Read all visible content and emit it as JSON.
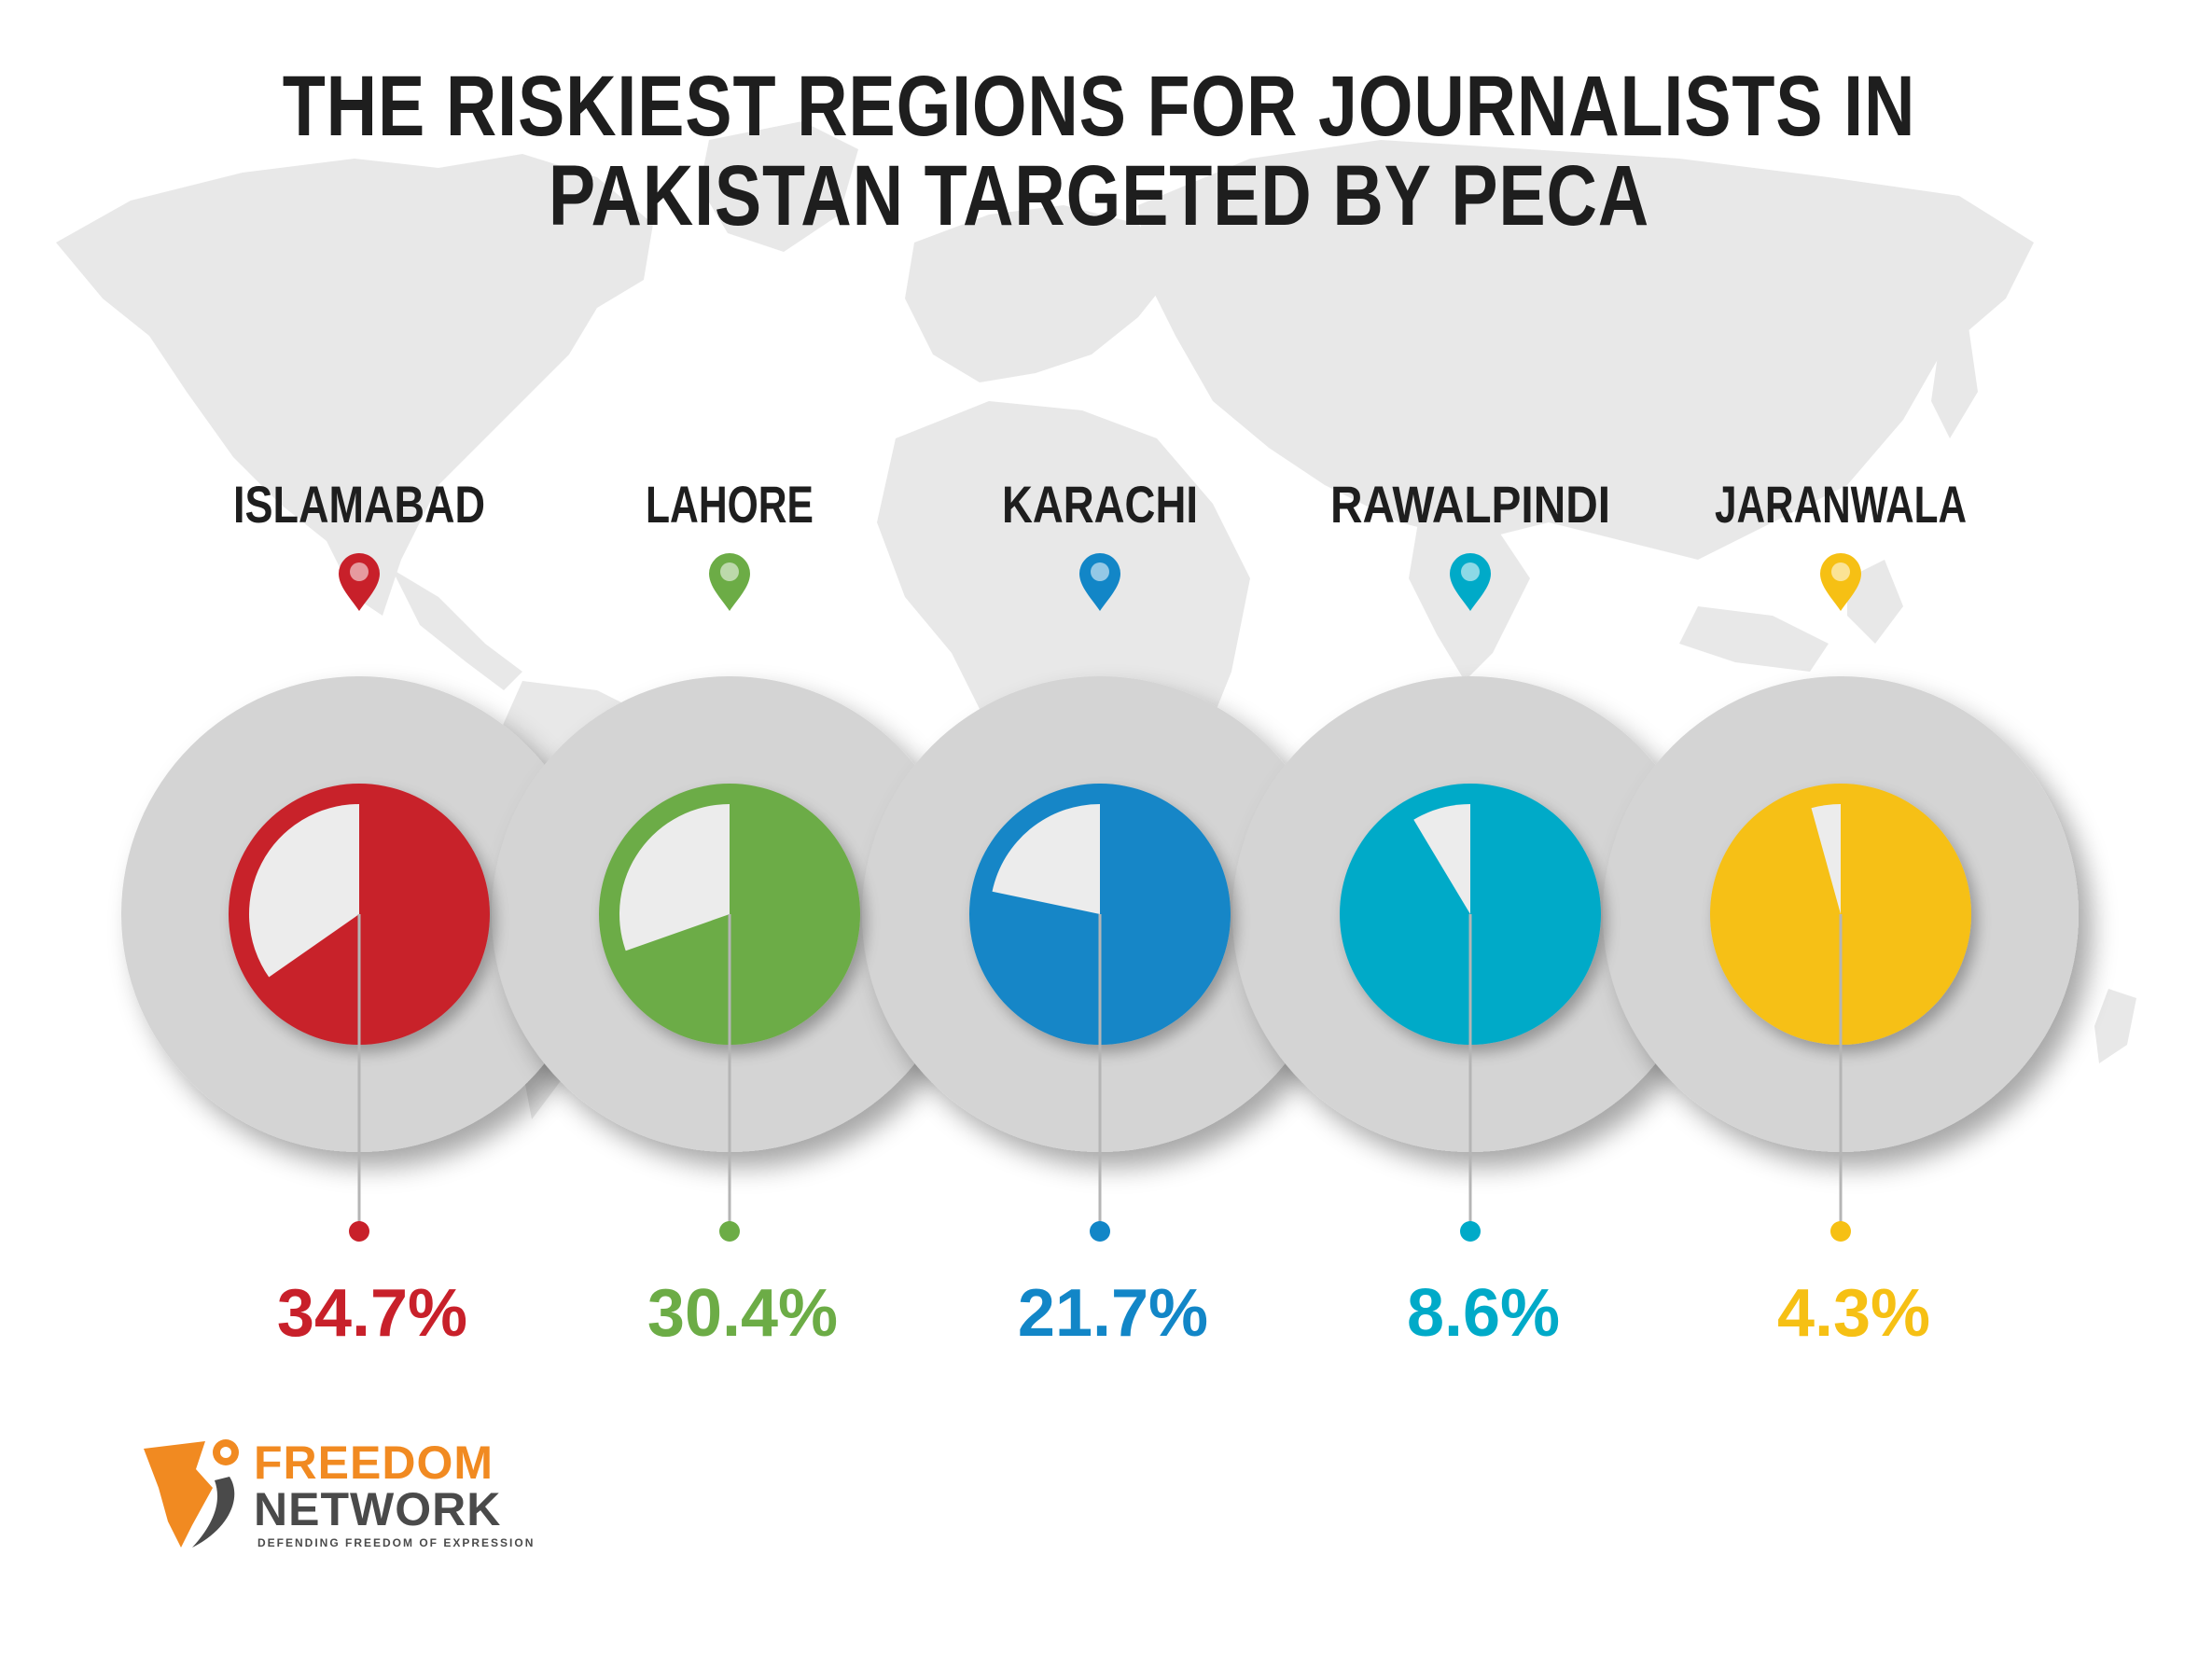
{
  "title": {
    "line1": "THE RISKIEST REGIONS FOR JOURNALISTS IN",
    "line2": "PAKISTAN TARGETED BY PECA"
  },
  "chart_data": {
    "type": "pie",
    "title": "THE RISKIEST REGIONS FOR JOURNALISTS IN PAKISTAN TARGETED BY PECA",
    "categories": [
      "ISLAMABAD",
      "LAHORE",
      "KARACHI",
      "RAWALPINDI",
      "JARANWALA"
    ],
    "values": [
      34.7,
      30.4,
      21.7,
      8.6,
      4.3
    ],
    "labels": [
      "34.7%",
      "30.4%",
      "21.7%",
      "8.6%",
      "4.3%"
    ],
    "unit": "%",
    "colors": [
      "#c8202a",
      "#6cac46",
      "#1286c7",
      "#00aac8",
      "#f6c014"
    ],
    "pin_icon": "map-pin-icon"
  },
  "logo": {
    "word1": "FREEDOM",
    "word2": "NETWORK",
    "tagline": "DEFENDING FREEDOM OF EXPRESSION",
    "colors": {
      "orange": "#f18a21",
      "grey": "#4a4a4a"
    }
  }
}
